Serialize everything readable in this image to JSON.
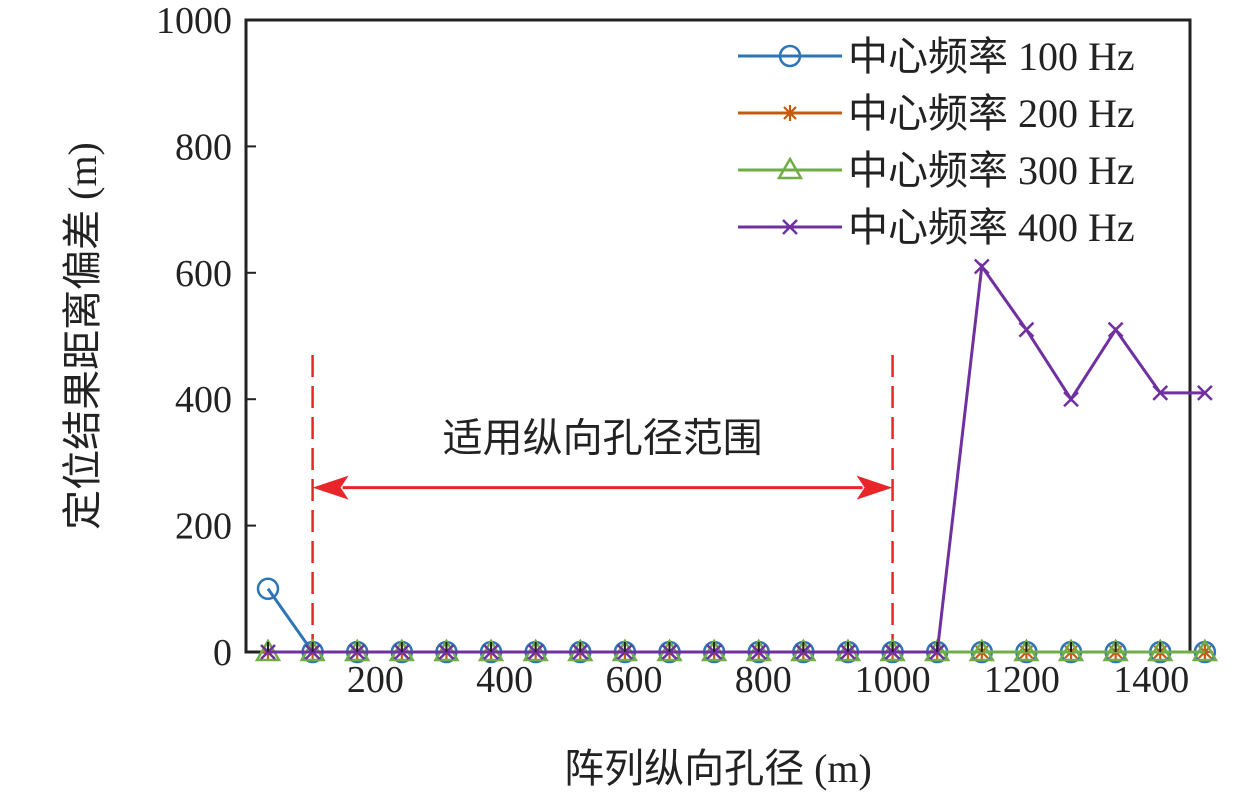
{
  "chart_data": {
    "type": "line",
    "xlabel": "阵列纵向孔径 (m)",
    "ylabel": "定位结果距离偏差 (m)",
    "xlim": [
      0,
      1460
    ],
    "ylim": [
      0,
      1000
    ],
    "x_ticks": [
      200,
      400,
      600,
      800,
      1000,
      1200,
      1400
    ],
    "y_ticks": [
      0,
      200,
      400,
      600,
      800,
      1000
    ],
    "x_tick_labels": [
      "200",
      "400",
      "600",
      "800",
      "1000",
      "1200",
      "1400"
    ],
    "y_tick_labels": [
      "0",
      "200",
      "400",
      "600",
      "800",
      "1000"
    ],
    "grid": false,
    "legend_position": "top-right",
    "x": [
      34,
      103,
      172,
      241,
      310,
      379,
      448,
      517,
      586,
      655,
      724,
      793,
      862,
      931,
      1000,
      1069,
      1138,
      1207,
      1276,
      1345,
      1414,
      1483
    ],
    "series": [
      {
        "name": "中心频率 100 Hz",
        "color": "#2e75b6",
        "marker": "circle",
        "values": [
          100,
          0,
          0,
          0,
          0,
          0,
          0,
          0,
          0,
          0,
          0,
          0,
          0,
          0,
          0,
          0,
          0,
          0,
          0,
          0,
          0,
          0
        ]
      },
      {
        "name": "中心频率 200 Hz",
        "color": "#c55a11",
        "marker": "asterisk",
        "values": [
          0,
          0,
          0,
          0,
          0,
          0,
          0,
          0,
          0,
          0,
          0,
          0,
          0,
          0,
          0,
          0,
          0,
          0,
          0,
          0,
          0,
          0
        ]
      },
      {
        "name": "中心频率 300 Hz",
        "color": "#70ad47",
        "marker": "triangle",
        "values": [
          0,
          0,
          0,
          0,
          0,
          0,
          0,
          0,
          0,
          0,
          0,
          0,
          0,
          0,
          0,
          0,
          0,
          0,
          0,
          0,
          0,
          0
        ]
      },
      {
        "name": "中心频率 400 Hz",
        "color": "#7030a0",
        "marker": "x",
        "values": [
          0,
          0,
          0,
          0,
          0,
          0,
          0,
          0,
          0,
          0,
          0,
          0,
          0,
          0,
          0,
          0,
          610,
          510,
          400,
          510,
          410,
          410
        ]
      }
    ],
    "annotations": [
      {
        "kind": "range-arrow",
        "text": "适用纵向孔径范围",
        "color": "#e8262a",
        "x_start": 103,
        "x_end": 1000,
        "y": 260,
        "line_y_top": 470,
        "line_y_bottom": 0
      }
    ]
  }
}
